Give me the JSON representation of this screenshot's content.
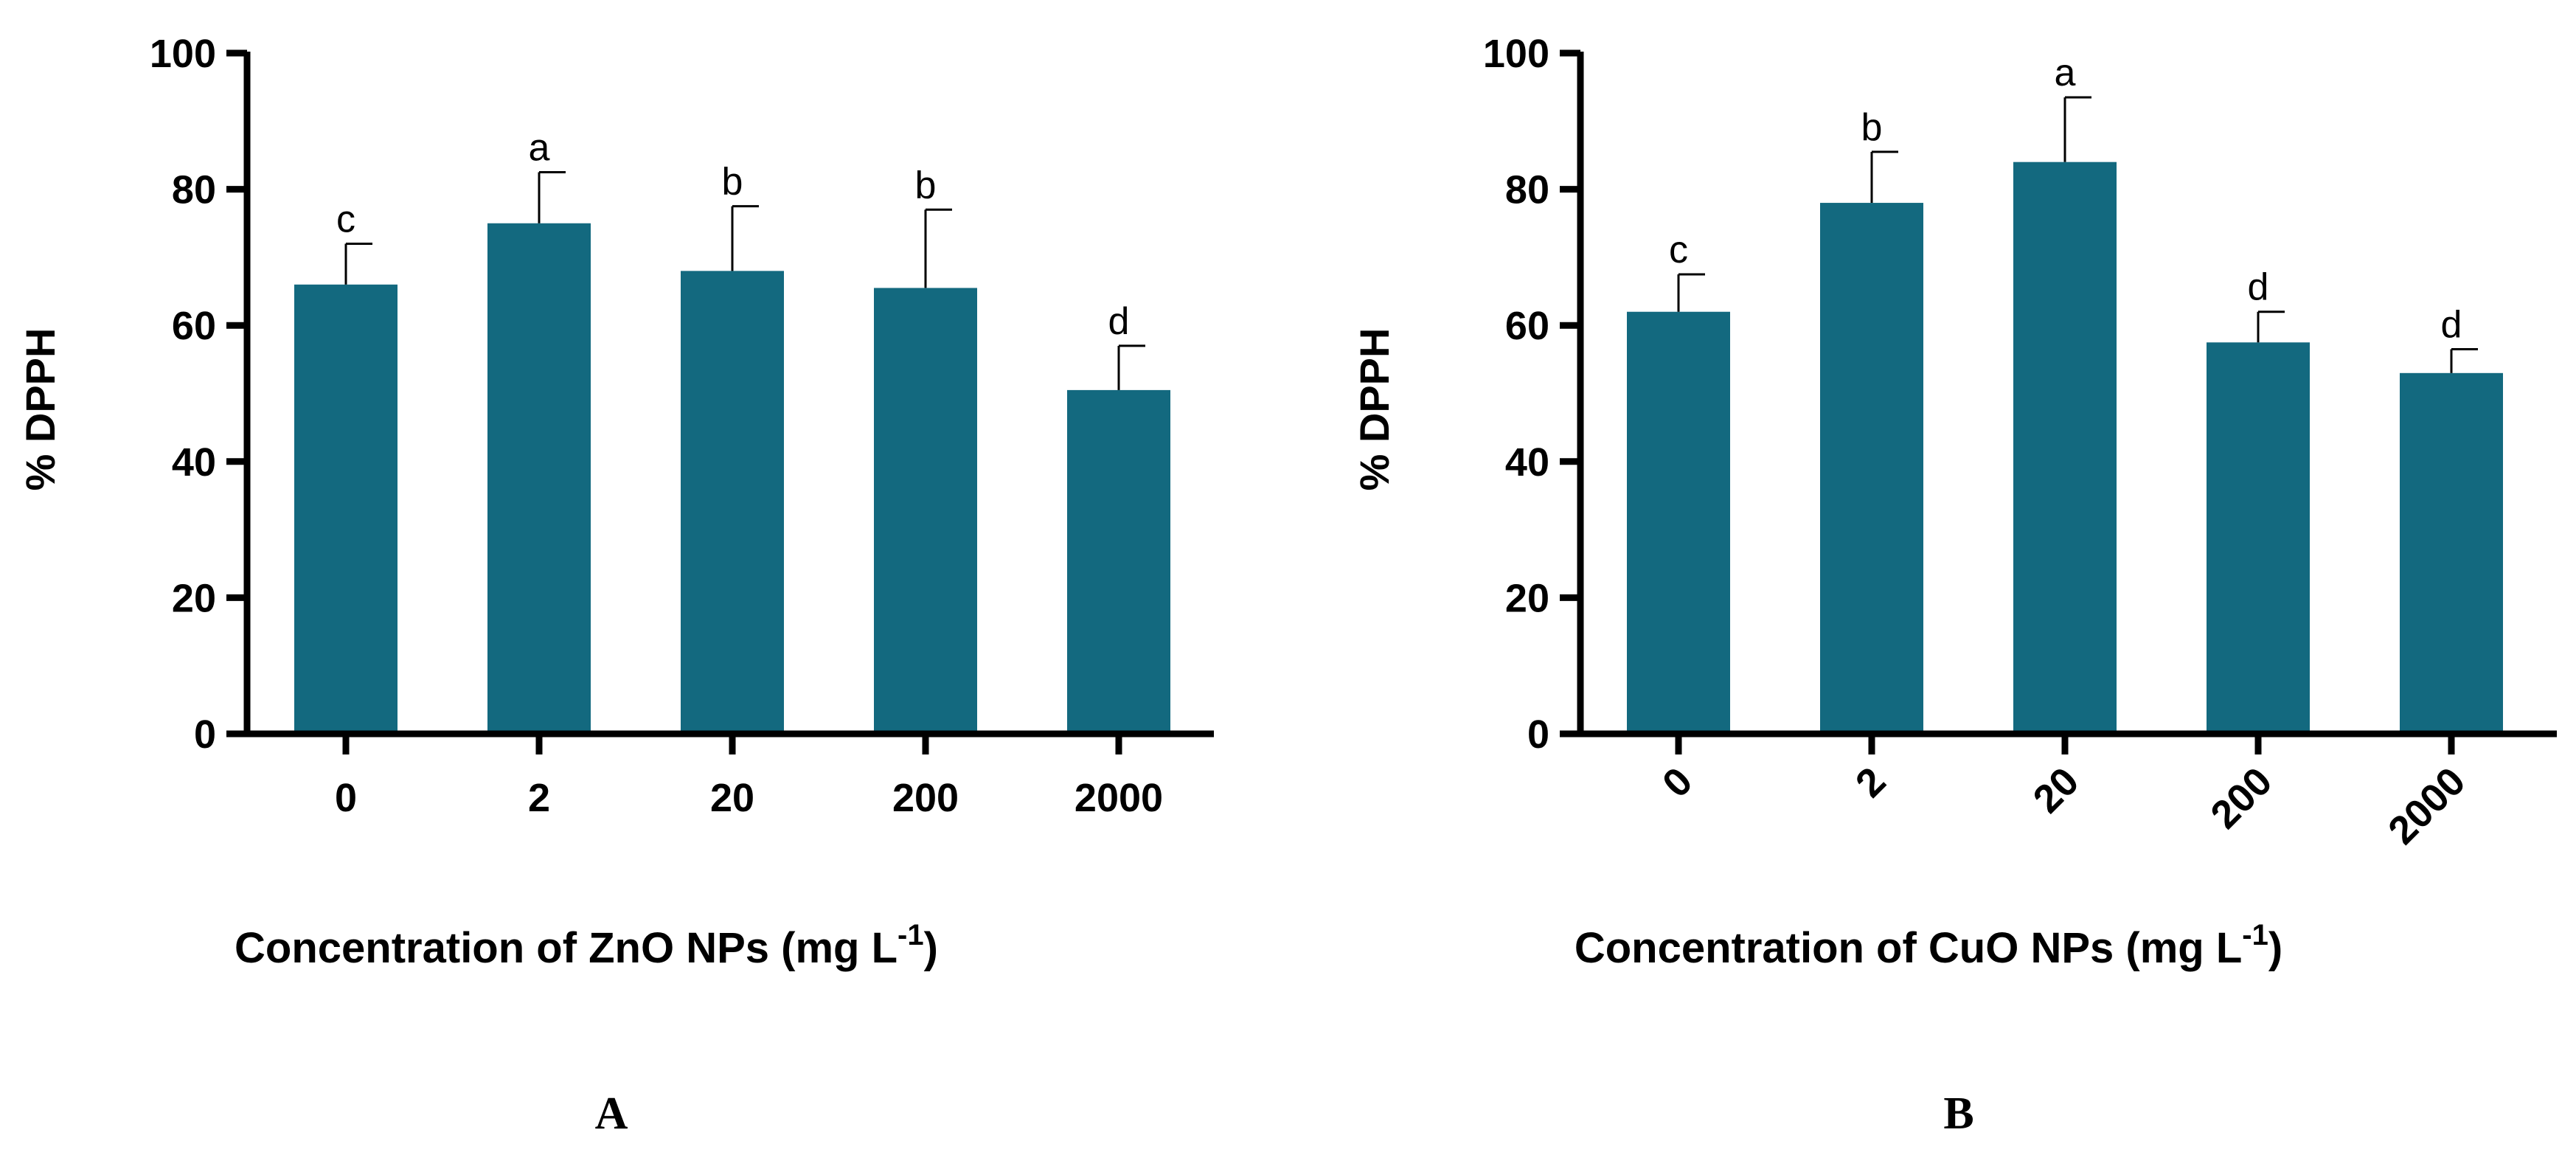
{
  "figure": {
    "panels": [
      {
        "letter": "A"
      },
      {
        "letter": "B"
      }
    ]
  },
  "colors": {
    "bar": "#13697f",
    "axis": "#000000",
    "text": "#000000"
  },
  "chart_data": [
    {
      "type": "bar",
      "panel": "A",
      "title": "",
      "ylabel": "% DPPH",
      "xlabel_main": "Concentration of ZnO NPs  (mg L",
      "xlabel_sup": "-1",
      "xlabel_tail": ")",
      "ylim": [
        0,
        100
      ],
      "yticks": [
        "0",
        "20",
        "40",
        "60",
        "80",
        "100"
      ],
      "categories": [
        "0",
        "2",
        "20",
        "200",
        "2000"
      ],
      "values": [
        66,
        75,
        68,
        65.5,
        50.5
      ],
      "errors": [
        6,
        7.5,
        9.5,
        11.5,
        6.5
      ],
      "letters": [
        "c",
        "a",
        "b",
        "b",
        "d"
      ],
      "tick_rotation": 0
    },
    {
      "type": "bar",
      "panel": "B",
      "title": "",
      "ylabel": "% DPPH",
      "xlabel_main": "Concentration of CuO NPs  (mg L",
      "xlabel_sup": "-1",
      "xlabel_tail": ")",
      "ylim": [
        0,
        100
      ],
      "yticks": [
        "0",
        "20",
        "40",
        "60",
        "80",
        "100"
      ],
      "categories": [
        "0",
        "2",
        "20",
        "200",
        "2000"
      ],
      "values": [
        62,
        78,
        84,
        57.5,
        53
      ],
      "errors": [
        5.5,
        7.5,
        9.5,
        4.5,
        3.5
      ],
      "letters": [
        "c",
        "b",
        "a",
        "d",
        "d"
      ],
      "tick_rotation": -45
    }
  ]
}
